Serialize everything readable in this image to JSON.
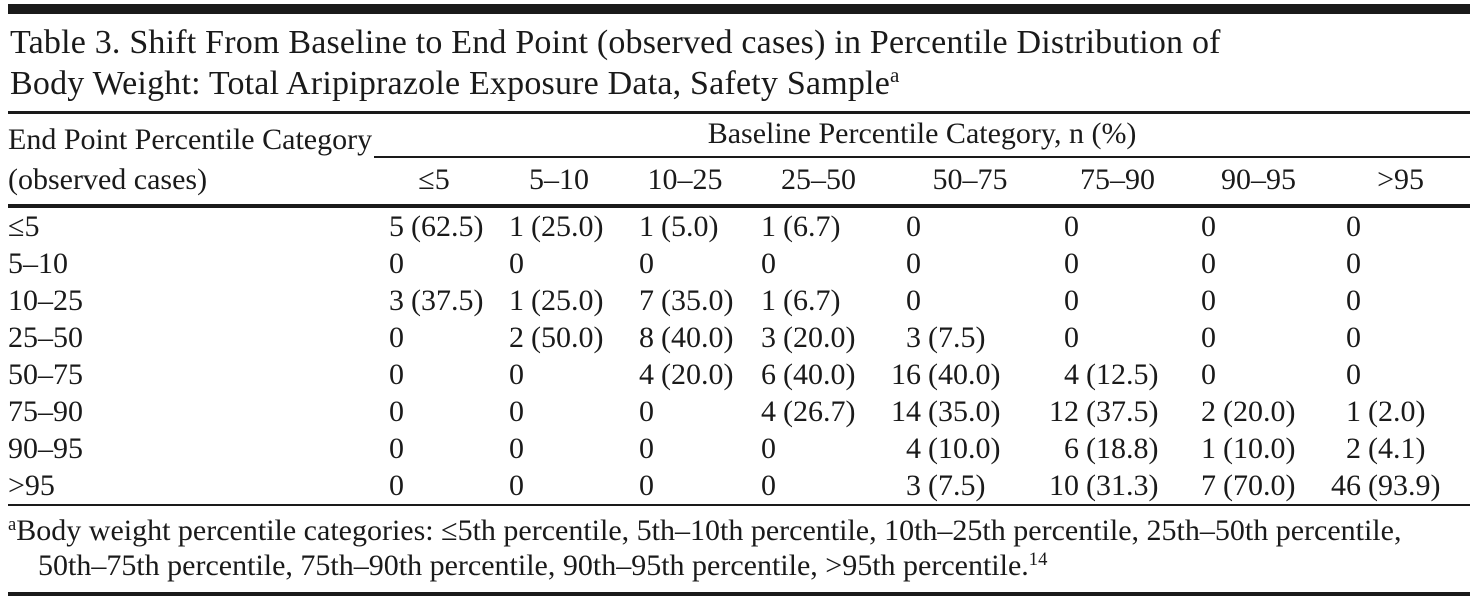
{
  "colors": {
    "text": "#1a1a1a",
    "background": "#ffffff",
    "rule": "#1a1a1a"
  },
  "table": {
    "title": {
      "line1": "Table 3. Shift From Baseline to End Point (observed cases) in Percentile Distribution of",
      "line2": "Body Weight: Total Aripiprazole Exposure Data, Safety Sample",
      "superscript": "a"
    },
    "row_header": "End Point Percentile Category (observed cases)",
    "column_group_header": "Baseline Percentile Category, n (%)",
    "columns": [
      "≤5",
      "5–10",
      "10–25",
      "25–50",
      "50–75",
      "75–90",
      "90–95",
      ">95"
    ],
    "rows": [
      {
        "label": "≤5",
        "values": [
          "5 (62.5)",
          "1 (25.0)",
          "1 (5.0)",
          "1 (6.7)",
          "0",
          "0",
          "0",
          "0"
        ]
      },
      {
        "label": "5–10",
        "values": [
          "0",
          "0",
          "0",
          "0",
          "0",
          "0",
          "0",
          "0"
        ]
      },
      {
        "label": "10–25",
        "values": [
          "3 (37.5)",
          "1 (25.0)",
          "7 (35.0)",
          "1 (6.7)",
          "0",
          "0",
          "0",
          "0"
        ]
      },
      {
        "label": "25–50",
        "values": [
          "0",
          "2 (50.0)",
          "8 (40.0)",
          "3 (20.0)",
          "3 (7.5)",
          "0",
          "0",
          "0"
        ]
      },
      {
        "label": "50–75",
        "values": [
          "0",
          "0",
          "4 (20.0)",
          "6 (40.0)",
          "16 (40.0)",
          "4 (12.5)",
          "0",
          "0"
        ]
      },
      {
        "label": "75–90",
        "values": [
          "0",
          "0",
          "0",
          "4 (26.7)",
          "14 (35.0)",
          "12 (37.5)",
          "2 (20.0)",
          "1 (2.0)"
        ]
      },
      {
        "label": "90–95",
        "values": [
          "0",
          "0",
          "0",
          "0",
          "4 (10.0)",
          "6 (18.8)",
          "1 (10.0)",
          "2 (4.1)"
        ]
      },
      {
        "label": ">95",
        "values": [
          "0",
          "0",
          "0",
          "0",
          "3 (7.5)",
          "10 (31.3)",
          "7 (70.0)",
          "46 (93.9)"
        ]
      }
    ],
    "footnote": {
      "marker": "a",
      "text": "Body weight percentile categories: ≤5th percentile, 5th–10th percentile, 10th–25th percentile, 25th–50th percentile, 50th–75th percentile, 75th–90th percentile, 90th–95th percentile, >95th percentile.",
      "reference": "14"
    }
  }
}
